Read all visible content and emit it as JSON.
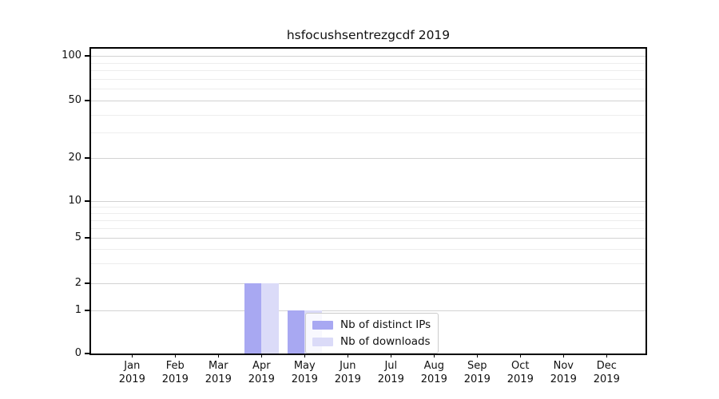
{
  "chart_data": {
    "type": "bar",
    "title": "hsfocushsentrezgcdf 2019",
    "categories": [
      "Jan 2019",
      "Feb 2019",
      "Mar 2019",
      "Apr 2019",
      "May 2019",
      "Jun 2019",
      "Jul 2019",
      "Aug 2019",
      "Sep 2019",
      "Oct 2019",
      "Nov 2019",
      "Dec 2019"
    ],
    "month_labels": [
      "Jan",
      "Feb",
      "Mar",
      "Apr",
      "May",
      "Jun",
      "Jul",
      "Aug",
      "Sep",
      "Oct",
      "Nov",
      "Dec"
    ],
    "year_label": "2019",
    "series": [
      {
        "name": "Nb of distinct IPs",
        "color": "#a8a8f2",
        "values": [
          0,
          0,
          0,
          2,
          1,
          0,
          0,
          0,
          0,
          0,
          0,
          0
        ]
      },
      {
        "name": "Nb of downloads",
        "color": "#dbdbf8",
        "values": [
          0,
          0,
          0,
          2,
          1,
          0,
          0,
          0,
          0,
          0,
          0,
          0
        ]
      }
    ],
    "xlabel": "",
    "ylabel": "",
    "y_axis": {
      "scale": "symlog",
      "ticks": [
        0,
        1,
        2,
        5,
        10,
        20,
        50,
        100
      ],
      "minor_gridlines": [
        3,
        4,
        6,
        7,
        8,
        9,
        30,
        40,
        60,
        70,
        80,
        90
      ],
      "ylim": [
        0,
        115
      ]
    },
    "legend": {
      "position": "inside-bottom-center",
      "entries": [
        "Nb of distinct IPs",
        "Nb of downloads"
      ]
    },
    "grid": "horizontal",
    "colors": {
      "major_gridline": "#d2d2d2",
      "minor_gridline": "#ededed",
      "axis": "#000000",
      "background": "#ffffff"
    }
  }
}
